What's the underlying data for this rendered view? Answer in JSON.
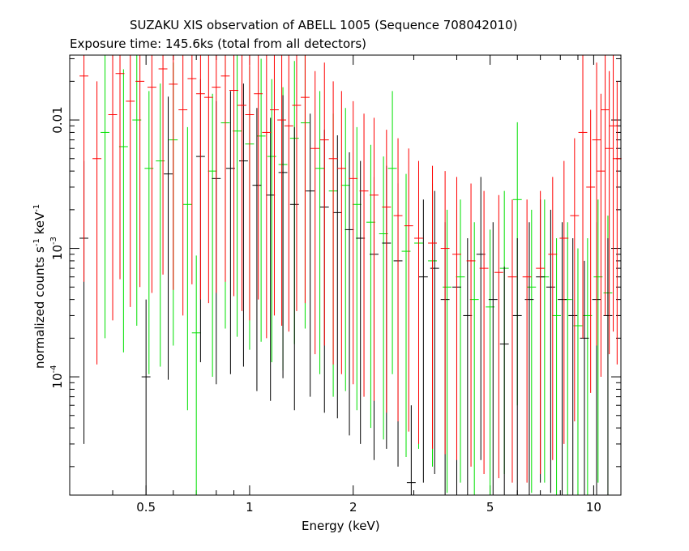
{
  "title": "SUZAKU XIS observation of ABELL 1005 (Sequence 708042010)",
  "subtitle": "Exposure time: 145.6ks (total from all detectors)",
  "chart_data": {
    "type": "scatter",
    "xlabel": "Energy (keV)",
    "ylabel_parts": [
      "normalized counts s",
      "-1",
      " keV",
      "-1"
    ],
    "xscale": "log",
    "yscale": "log",
    "xlim": [
      0.3,
      12
    ],
    "ylim": [
      1.2e-05,
      0.032
    ],
    "x_ticks": [
      {
        "value": 0.5,
        "label": "0.5"
      },
      {
        "value": 1,
        "label": "1"
      },
      {
        "value": 2,
        "label": "2"
      },
      {
        "value": 5,
        "label": "5"
      },
      {
        "value": 10,
        "label": "10"
      }
    ],
    "y_ticks": [
      {
        "value": 0.01,
        "label": "0.01"
      },
      {
        "value": 0.001,
        "label": "10",
        "exp": "-3"
      },
      {
        "value": 0.0001,
        "label": "10",
        "exp": "-4"
      }
    ],
    "series": [
      {
        "color": "#ff0000",
        "points": [
          [
            0.33,
            0.022
          ],
          [
            0.36,
            0.005
          ],
          [
            0.4,
            0.011
          ],
          [
            0.42,
            0.023
          ],
          [
            0.45,
            0.014
          ],
          [
            0.48,
            0.02
          ],
          [
            0.52,
            0.018
          ],
          [
            0.56,
            0.025
          ],
          [
            0.6,
            0.019
          ],
          [
            0.64,
            0.012
          ],
          [
            0.68,
            0.021
          ],
          [
            0.72,
            0.016
          ],
          [
            0.76,
            0.015
          ],
          [
            0.8,
            0.018
          ],
          [
            0.85,
            0.022
          ],
          [
            0.9,
            0.017
          ],
          [
            0.95,
            0.013
          ],
          [
            1.0,
            0.011
          ],
          [
            1.06,
            0.016
          ],
          [
            1.12,
            0.008
          ],
          [
            1.18,
            0.012
          ],
          [
            1.24,
            0.01
          ],
          [
            1.3,
            0.009
          ],
          [
            1.37,
            0.013
          ],
          [
            1.45,
            0.015
          ],
          [
            1.55,
            0.006
          ],
          [
            1.65,
            0.007
          ],
          [
            1.75,
            0.005
          ],
          [
            1.85,
            0.0042
          ],
          [
            2.0,
            0.0035
          ],
          [
            2.15,
            0.0028
          ],
          [
            2.3,
            0.0026
          ],
          [
            2.5,
            0.0021
          ],
          [
            2.7,
            0.0018
          ],
          [
            2.9,
            0.0015
          ],
          [
            3.1,
            0.0012
          ],
          [
            3.4,
            0.0011
          ],
          [
            3.7,
            0.001
          ],
          [
            4.0,
            0.0009
          ],
          [
            4.4,
            0.0008
          ],
          [
            4.8,
            0.0007
          ],
          [
            5.3,
            0.00065
          ],
          [
            5.8,
            0.0006
          ],
          [
            6.4,
            0.0006
          ],
          [
            7.0,
            0.0007
          ],
          [
            7.6,
            0.0009
          ],
          [
            8.2,
            0.0012
          ],
          [
            8.8,
            0.0018
          ],
          [
            9.3,
            0.008
          ],
          [
            9.8,
            0.003
          ],
          [
            10.2,
            0.007
          ],
          [
            10.5,
            0.004
          ],
          [
            10.8,
            0.012
          ],
          [
            11.1,
            0.006
          ],
          [
            11.4,
            0.009
          ],
          [
            11.7,
            0.005
          ]
        ]
      },
      {
        "color": "#00e000",
        "points": [
          [
            0.38,
            0.008
          ],
          [
            0.43,
            0.0062
          ],
          [
            0.47,
            0.01
          ],
          [
            0.51,
            0.0042
          ],
          [
            0.55,
            0.0048
          ],
          [
            0.6,
            0.007
          ],
          [
            0.66,
            0.0022
          ],
          [
            0.7,
            0.00022
          ],
          [
            0.78,
            0.004
          ],
          [
            0.85,
            0.0095
          ],
          [
            0.92,
            0.0082
          ],
          [
            1.0,
            0.0065
          ],
          [
            1.08,
            0.0075
          ],
          [
            1.16,
            0.0052
          ],
          [
            1.25,
            0.0045
          ],
          [
            1.35,
            0.0072
          ],
          [
            1.45,
            0.0095
          ],
          [
            1.6,
            0.0042
          ],
          [
            1.75,
            0.0028
          ],
          [
            1.9,
            0.0031
          ],
          [
            2.05,
            0.0022
          ],
          [
            2.25,
            0.0016
          ],
          [
            2.45,
            0.0013
          ],
          [
            2.6,
            0.0042
          ],
          [
            2.85,
            0.00095
          ],
          [
            3.1,
            0.0011
          ],
          [
            3.4,
            0.0008
          ],
          [
            3.75,
            0.0005
          ],
          [
            4.1,
            0.0006
          ],
          [
            4.5,
            0.0004
          ],
          [
            5.0,
            0.00035
          ],
          [
            5.5,
            0.0007
          ],
          [
            6.0,
            0.0024
          ],
          [
            6.6,
            0.0005
          ],
          [
            7.2,
            0.0006
          ],
          [
            7.8,
            0.0003
          ],
          [
            8.4,
            0.0004
          ],
          [
            9.0,
            0.00025
          ],
          [
            9.6,
            0.0003
          ],
          [
            10.3,
            0.0006
          ],
          [
            11.0,
            0.00045
          ]
        ]
      },
      {
        "color": "#000000",
        "points": [
          [
            0.33,
            0.0012
          ],
          [
            0.5,
            0.0001
          ],
          [
            0.58,
            0.0038
          ],
          [
            0.72,
            0.0052
          ],
          [
            0.8,
            0.0035
          ],
          [
            0.88,
            0.0042
          ],
          [
            0.96,
            0.0048
          ],
          [
            1.05,
            0.0031
          ],
          [
            1.15,
            0.0026
          ],
          [
            1.25,
            0.0039
          ],
          [
            1.35,
            0.0022
          ],
          [
            1.5,
            0.0028
          ],
          [
            1.65,
            0.0021
          ],
          [
            1.8,
            0.0019
          ],
          [
            1.95,
            0.0014
          ],
          [
            2.1,
            0.0012
          ],
          [
            2.3,
            0.0009
          ],
          [
            2.5,
            0.0011
          ],
          [
            2.7,
            0.0008
          ],
          [
            2.95,
            1.5e-05
          ],
          [
            3.2,
            0.0006
          ],
          [
            3.45,
            0.0007
          ],
          [
            3.7,
            0.0004
          ],
          [
            4.0,
            0.0005
          ],
          [
            4.3,
            0.0003
          ],
          [
            4.7,
            0.0009
          ],
          [
            5.1,
            0.0004
          ],
          [
            5.5,
            0.00018
          ],
          [
            6.0,
            0.0003
          ],
          [
            6.5,
            0.0004
          ],
          [
            7.0,
            0.0006
          ],
          [
            7.5,
            0.0005
          ],
          [
            8.1,
            0.0004
          ],
          [
            8.7,
            0.0003
          ],
          [
            9.4,
            0.0002
          ],
          [
            10.2,
            0.0004
          ],
          [
            11.0,
            0.0003
          ]
        ]
      }
    ]
  }
}
